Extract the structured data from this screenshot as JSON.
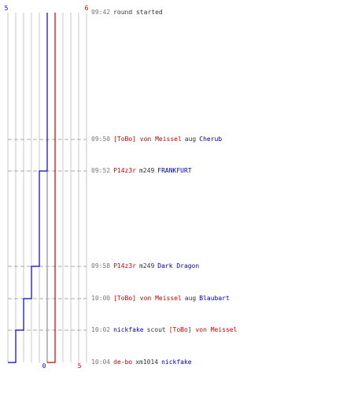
{
  "chart_data": {
    "type": "line",
    "axes": {
      "top_left_label": "5",
      "top_right_label": "6",
      "bottom_left_label": "0",
      "bottom_right_label": "5"
    },
    "series": [
      {
        "color": "#0000cc",
        "values": [
          5,
          5,
          4,
          3,
          2,
          1,
          0,
          0
        ]
      },
      {
        "color": "#cc0000",
        "values": [
          6,
          6,
          6,
          6,
          6,
          6,
          5,
          5
        ]
      }
    ],
    "events": [
      {
        "time": "09:42",
        "parts": [
          {
            "t": "round started",
            "c": "plain"
          }
        ]
      },
      {
        "time": "09:50",
        "parts": [
          {
            "t": "[ToBo] von Meissel",
            "c": "red"
          },
          {
            "t": "aug",
            "c": "plain"
          },
          {
            "t": "Cherub",
            "c": "blue"
          }
        ]
      },
      {
        "time": "09:52",
        "parts": [
          {
            "t": "P14z3r",
            "c": "red"
          },
          {
            "t": "m249",
            "c": "plain"
          },
          {
            "t": "FRANKFURT",
            "c": "blue"
          }
        ]
      },
      {
        "time": "09:58",
        "parts": [
          {
            "t": "P14z3r",
            "c": "red"
          },
          {
            "t": "m249",
            "c": "plain"
          },
          {
            "t": "Dark Dragon",
            "c": "blue"
          }
        ]
      },
      {
        "time": "10:00",
        "parts": [
          {
            "t": "[ToBo] von Meissel",
            "c": "red"
          },
          {
            "t": "aug",
            "c": "plain"
          },
          {
            "t": "Blaubart",
            "c": "blue"
          }
        ]
      },
      {
        "time": "10:02",
        "parts": [
          {
            "t": "nickfake",
            "c": "blue"
          },
          {
            "t": "scout",
            "c": "plain"
          },
          {
            "t": "[ToBo] von Meissel",
            "c": "red"
          }
        ]
      },
      {
        "time": "10:04",
        "parts": [
          {
            "t": "de-bo",
            "c": "red"
          },
          {
            "t": "xm1014",
            "c": "plain"
          },
          {
            "t": "nickfake",
            "c": "blue"
          }
        ]
      }
    ],
    "colors": {
      "blue_line": "#0000cc",
      "red_line": "#cc0000",
      "grid": "#c8c8c8",
      "mid_line": "#777777"
    }
  }
}
